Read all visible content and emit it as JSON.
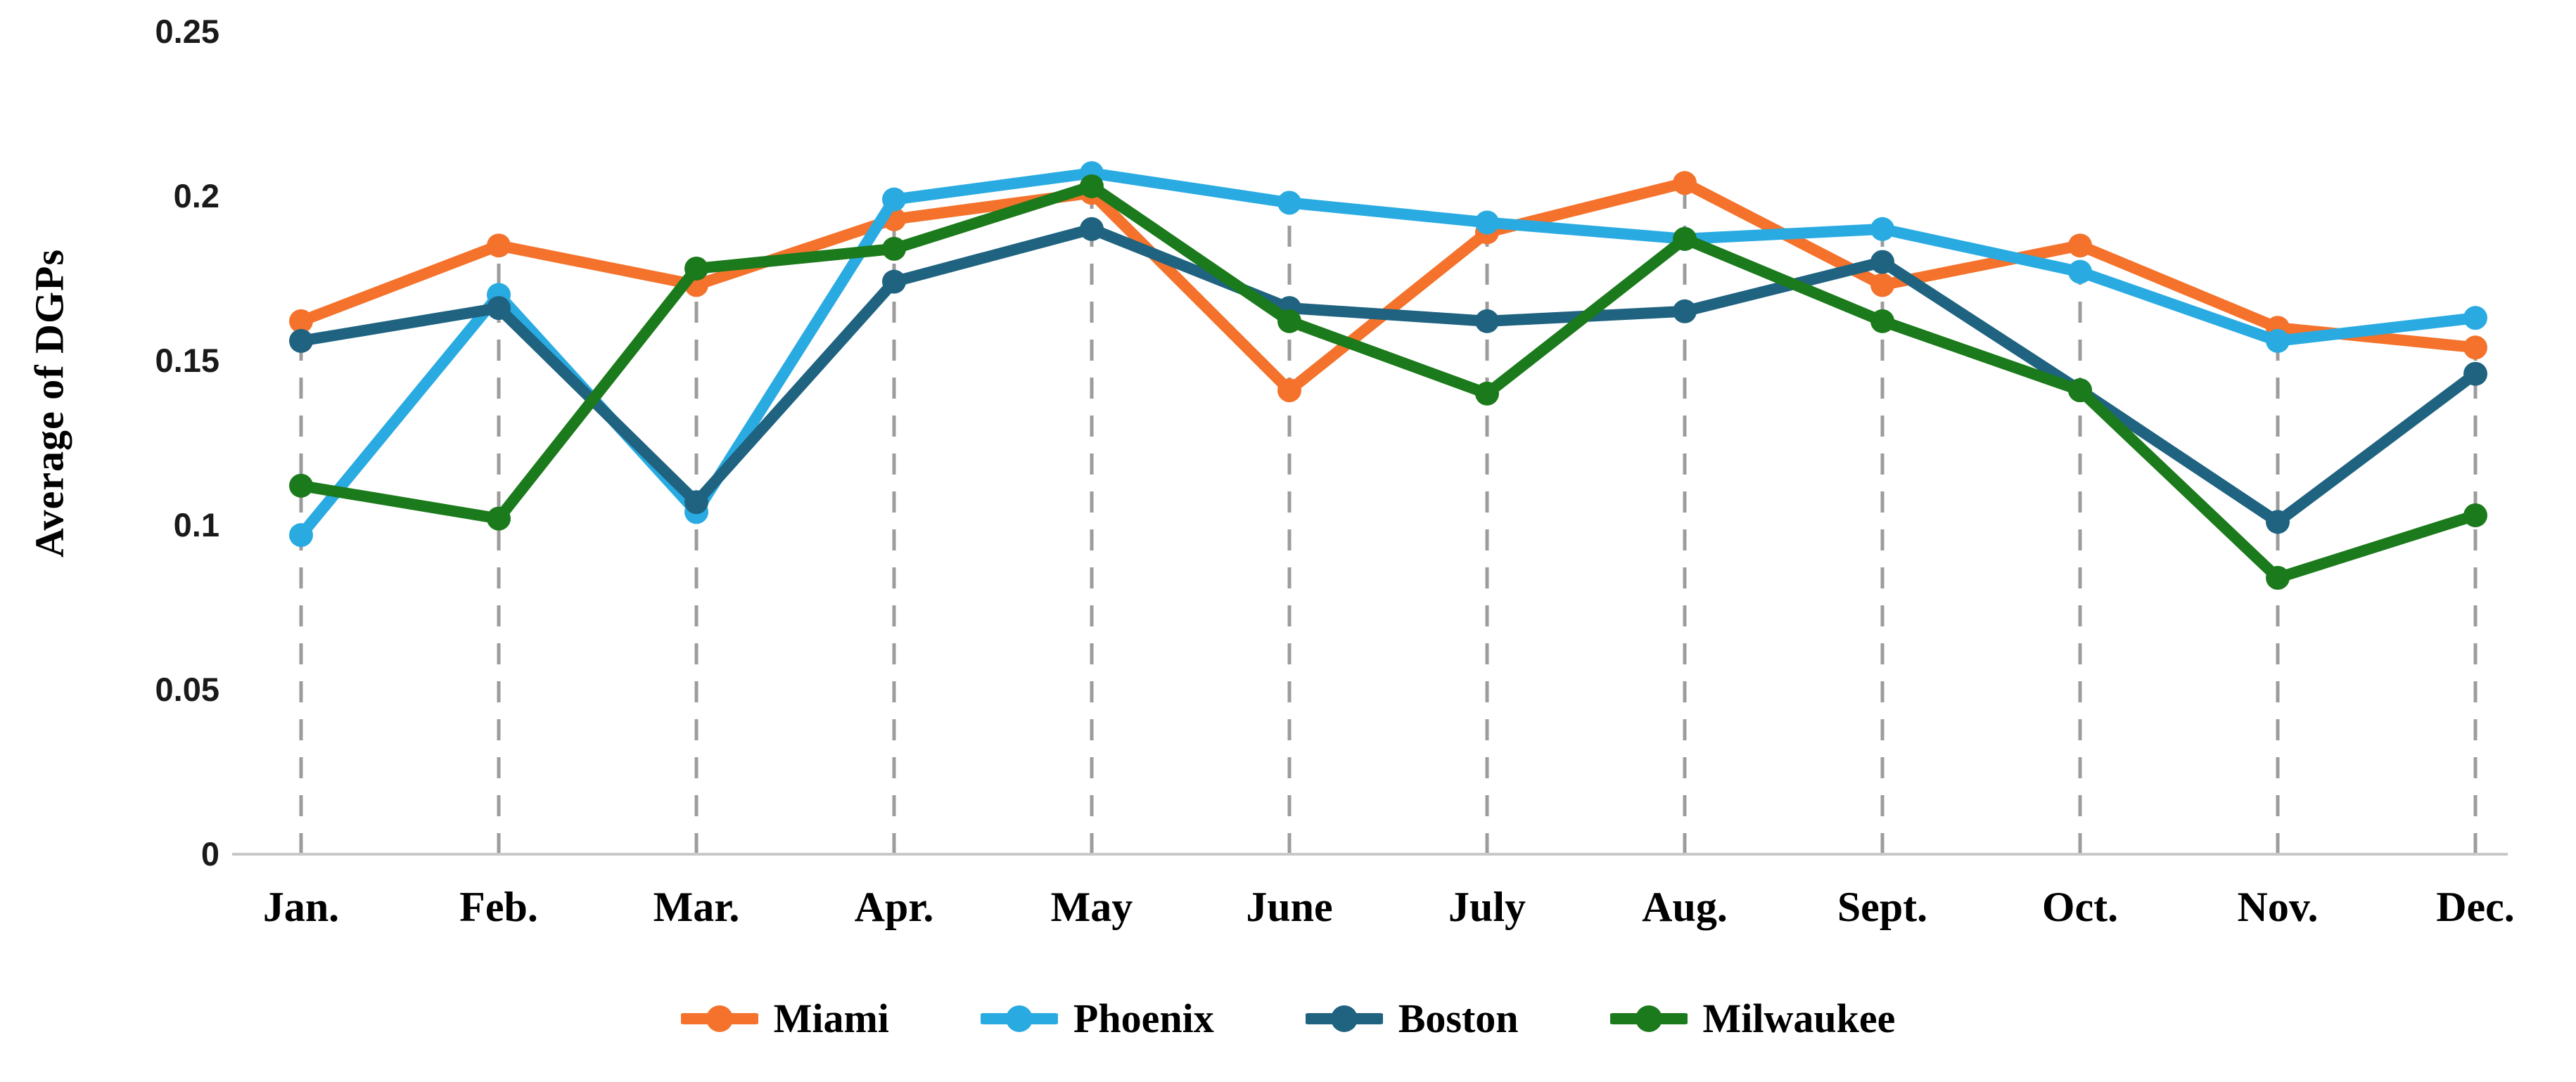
{
  "chart_data": {
    "type": "line",
    "title": "",
    "xlabel": "",
    "ylabel": "Average of DGPs",
    "ylim": [
      0,
      0.25
    ],
    "y_ticks": [
      0,
      0.05,
      0.1,
      0.15,
      0.2,
      0.25
    ],
    "y_tick_labels": [
      "0",
      "0.05",
      "0.1",
      "0.15",
      "0.2",
      "0.25"
    ],
    "grid": "vertical dashed gridline at each category, rising to the top data point",
    "legend_position": "bottom-center",
    "categories": [
      "Jan.",
      "Feb.",
      "Mar.",
      "Apr.",
      "May",
      "June",
      "July",
      "Aug.",
      "Sept.",
      "Oct.",
      "Nov.",
      "Dec."
    ],
    "series": [
      {
        "name": "Miami",
        "color": "#F4722B",
        "values": [
          0.162,
          0.185,
          0.173,
          0.193,
          0.201,
          0.141,
          0.189,
          0.204,
          0.173,
          0.185,
          0.16,
          0.154
        ]
      },
      {
        "name": "Phoenix",
        "color": "#29ABE2",
        "values": [
          0.097,
          0.17,
          0.104,
          0.199,
          0.207,
          0.198,
          0.192,
          0.187,
          0.19,
          0.177,
          0.156,
          0.163
        ]
      },
      {
        "name": "Boston",
        "color": "#1F6380",
        "values": [
          0.156,
          0.166,
          0.107,
          0.174,
          0.19,
          0.166,
          0.162,
          0.165,
          0.18,
          0.141,
          0.101,
          0.146
        ]
      },
      {
        "name": "Milwaukee",
        "color": "#1B7A1B",
        "values": [
          0.112,
          0.102,
          0.178,
          0.184,
          0.203,
          0.162,
          0.14,
          0.187,
          0.162,
          0.141,
          0.084,
          0.103
        ]
      }
    ]
  },
  "style_colors": {
    "gridline": "#9C9C9C",
    "axis_line": "#C8C8C8",
    "text": "#000000"
  }
}
